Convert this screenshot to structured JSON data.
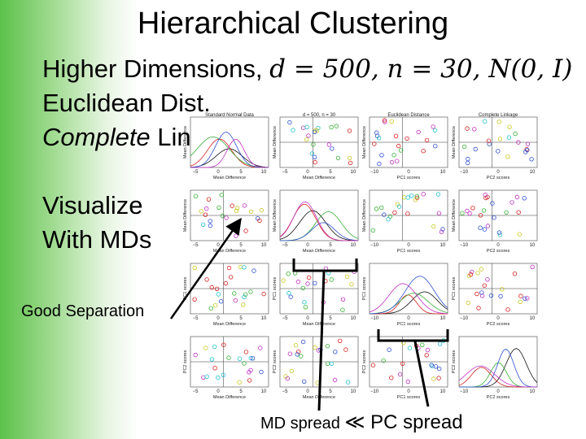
{
  "slide": {
    "title": "Hierarchical Clustering",
    "bullets": {
      "line1_text": "Higher Dimensions, ",
      "line1_d": "d",
      "line1_d_val": " = 500, ",
      "line1_n": "n",
      "line1_n_val": " = 30, ",
      "line1_N": "N",
      "line1_N_args": "(0, ",
      "line1_I": "I",
      "line1_close": ")",
      "line2": "Euclidean Dist.",
      "line3_italic": "Complete",
      "line3_rest": " Linkage",
      "line4": "Visualize",
      "line5": "With MDs"
    },
    "good_separation": "Good Separation",
    "footer_md": "MD spread ",
    "footer_symbol": "≪",
    "footer_pc": " PC spread"
  },
  "panels": {
    "col_titles": [
      "Standard Normal Data",
      "d = 500, n = 30",
      "Euclidean Distance",
      "Complete Linkage"
    ],
    "md_xlabel": "Mean Difference",
    "md_ylabel": "Mean Difference",
    "pc_label": "PC1 scores",
    "pc2_label": "PC2 scores",
    "tick_labels_md": [
      "−5",
      "0",
      "5",
      "10"
    ],
    "tick_labels_pc": [
      "−10",
      "0",
      "10"
    ],
    "colors": {
      "red": "#d62020",
      "green": "#35b035",
      "blue": "#3050d0",
      "cyan": "#20c0d0",
      "magenta": "#c030c0",
      "black": "#111111",
      "yellow": "#c8c820"
    }
  }
}
